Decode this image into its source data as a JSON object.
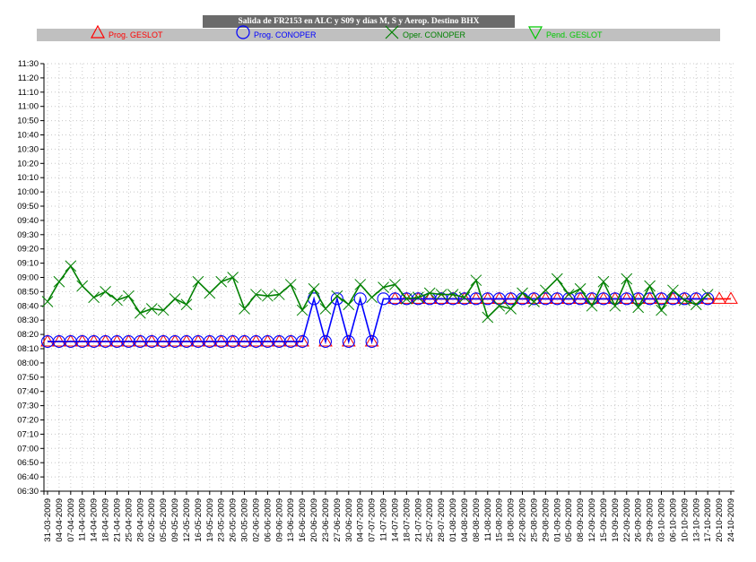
{
  "title": "Salida de FR2153 en ALC y S09 y días M, S y Aerop. Destino BHX",
  "legend": [
    {
      "label": "Prog. GESLOT",
      "color": "#ff0000",
      "icon": "triangle-up"
    },
    {
      "label": "Prog. CONOPER",
      "color": "#0000ff",
      "icon": "circle"
    },
    {
      "label": "Oper. CONOPER",
      "color": "#008000",
      "icon": "cross"
    },
    {
      "label": "Pend. GESLOT",
      "color": "#00c800",
      "icon": "triangle-down"
    }
  ],
  "chart_data": {
    "type": "line",
    "title": "Salida de FR2153 en ALC y S09 y días M, S y Aerop. Destino BHX",
    "xlabel": "",
    "ylabel": "",
    "grid": true,
    "legend_position": "top",
    "y_ticks": [
      "06:30",
      "06:40",
      "06:50",
      "07:00",
      "07:10",
      "07:20",
      "07:30",
      "07:40",
      "07:50",
      "08:00",
      "08:10",
      "08:20",
      "08:30",
      "08:40",
      "08:50",
      "09:00",
      "09:10",
      "09:20",
      "09:30",
      "09:40",
      "09:50",
      "10:00",
      "10:10",
      "10:20",
      "10:30",
      "10:40",
      "10:50",
      "11:00",
      "11:10",
      "11:20",
      "11:30"
    ],
    "ylim": [
      "06:30",
      "11:30"
    ],
    "x_ticks": [
      "31-03-2009",
      "04-04-2009",
      "07-04-2009",
      "11-04-2009",
      "14-04-2009",
      "18-04-2009",
      "21-04-2009",
      "25-04-2009",
      "28-04-2009",
      "02-05-2009",
      "05-05-2009",
      "09-05-2009",
      "12-05-2009",
      "16-05-2009",
      "19-05-2009",
      "23-05-2009",
      "26-05-2009",
      "30-05-2009",
      "02-06-2009",
      "06-06-2009",
      "09-06-2009",
      "13-06-2009",
      "16-06-2009",
      "20-06-2009",
      "23-06-2009",
      "27-06-2009",
      "30-06-2009",
      "04-07-2009",
      "07-07-2009",
      "11-07-2009",
      "14-07-2009",
      "18-07-2009",
      "21-07-2009",
      "25-07-2009",
      "28-07-2009",
      "01-08-2009",
      "04-08-2009",
      "08-08-2009",
      "11-08-2009",
      "15-08-2009",
      "18-08-2009",
      "22-08-2009",
      "25-08-2009",
      "29-08-2009",
      "01-09-2009",
      "05-09-2009",
      "08-09-2009",
      "12-09-2009",
      "15-09-2009",
      "19-09-2009",
      "22-09-2009",
      "26-09-2009",
      "29-09-2009",
      "03-10-2009",
      "06-10-2009",
      "10-10-2009",
      "13-10-2009",
      "17-10-2009",
      "20-10-2009",
      "24-10-2009"
    ],
    "series": [
      {
        "name": "Prog. GESLOT",
        "color": "#ff0000",
        "marker": "triangle-up",
        "values": [
          "08:15",
          "08:15",
          "08:15",
          "08:15",
          "08:15",
          "08:15",
          "08:15",
          "08:15",
          "08:15",
          "08:15",
          "08:15",
          "08:15",
          "08:15",
          "08:15",
          "08:15",
          "08:15",
          "08:15",
          "08:15",
          "08:15",
          "08:15",
          "08:15",
          "08:15",
          "08:15",
          null,
          "08:15",
          null,
          "08:15",
          null,
          "08:15",
          null,
          "08:45",
          "08:45",
          "08:45",
          "08:45",
          "08:45",
          "08:45",
          "08:45",
          "08:45",
          "08:45",
          "08:45",
          "08:45",
          "08:45",
          "08:45",
          "08:45",
          "08:45",
          "08:45",
          "08:45",
          "08:45",
          "08:45",
          "08:45",
          "08:45",
          "08:45",
          "08:45",
          "08:45",
          "08:45",
          "08:45",
          "08:45",
          "08:45",
          "08:45",
          "08:45"
        ]
      },
      {
        "name": "Prog. CONOPER",
        "color": "#0000ff",
        "marker": "circle",
        "values": [
          "08:15",
          "08:15",
          "08:15",
          "08:15",
          "08:15",
          "08:15",
          "08:15",
          "08:15",
          "08:15",
          "08:15",
          "08:15",
          "08:15",
          "08:15",
          "08:15",
          "08:15",
          "08:15",
          "08:15",
          "08:15",
          "08:15",
          "08:15",
          "08:15",
          "08:15",
          "08:15",
          "08:45",
          "08:15",
          "08:45",
          "08:15",
          "08:45",
          "08:15",
          "08:45",
          "08:45",
          "08:45",
          "08:45",
          "08:45",
          "08:45",
          "08:45",
          "08:45",
          "08:45",
          "08:45",
          "08:45",
          "08:45",
          "08:45",
          "08:45",
          "08:45",
          "08:45",
          "08:45",
          "08:45",
          "08:45",
          "08:45",
          "08:45",
          "08:45",
          "08:45",
          "08:45",
          "08:45",
          "08:45",
          "08:45",
          "08:45",
          "08:45",
          null,
          null
        ]
      },
      {
        "name": "Oper. CONOPER",
        "color": "#008000",
        "marker": "cross",
        "values": [
          "08:43",
          "08:57",
          "09:08",
          "08:54",
          "08:46",
          "08:50",
          "08:44",
          "08:47",
          "08:35",
          "08:38",
          "08:37",
          "08:45",
          "08:41",
          "08:57",
          "08:49",
          "08:57",
          "09:00",
          "08:38",
          "08:48",
          "08:47",
          "08:48",
          "08:55",
          "08:37",
          "08:52",
          "08:38",
          "08:47",
          "08:41",
          "08:55",
          "08:46",
          "08:53",
          "08:55",
          "08:45",
          "08:46",
          "08:49",
          "08:48",
          "08:48",
          "08:46",
          "08:58",
          "08:32",
          "08:40",
          "08:38",
          "08:49",
          "08:43",
          "08:51",
          "08:59",
          "08:48",
          "08:52",
          "08:40",
          "08:57",
          "08:40",
          "08:59",
          "08:39",
          "08:54",
          "08:37",
          "08:51",
          "08:44",
          "08:41",
          "08:48",
          null,
          null
        ]
      }
    ]
  }
}
